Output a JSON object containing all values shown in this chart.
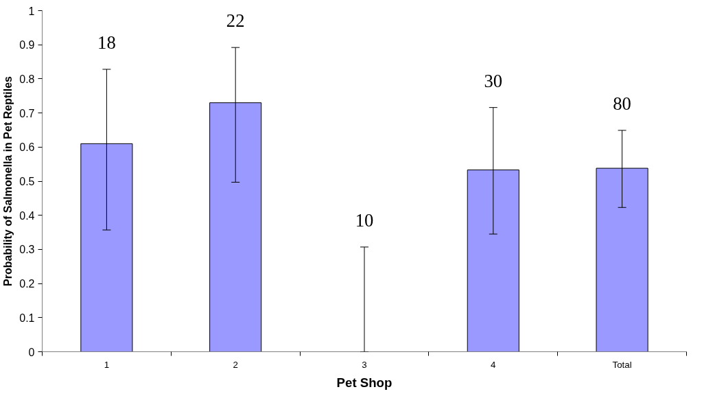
{
  "chart_data": {
    "type": "bar",
    "xlabel": "Pet Shop",
    "ylabel": "Probability of Salmonella in Pet Reptiles",
    "categories": [
      "1",
      "2",
      "3",
      "4",
      "Total"
    ],
    "values": [
      0.61,
      0.73,
      0,
      0.533,
      0.538
    ],
    "errors": [
      [
        0.357,
        0.828
      ],
      [
        0.497,
        0.892
      ],
      [
        0,
        0.307
      ],
      [
        0.345,
        0.716
      ],
      [
        0.423,
        0.649
      ]
    ],
    "color": "#9999ff",
    "ylim": [
      0,
      1
    ],
    "yticks": [
      0,
      0.1,
      0.2,
      0.3,
      0.4,
      0.5,
      0.6,
      0.7,
      0.8,
      0.9,
      1
    ],
    "grid": false,
    "annotations": [
      "18",
      "22",
      "10",
      "30",
      "80"
    ]
  }
}
